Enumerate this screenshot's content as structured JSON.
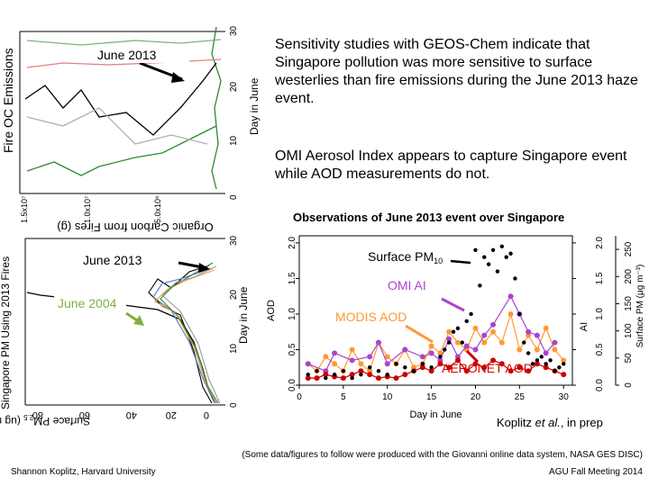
{
  "slide": {
    "paragraph1": "Sensitivity studies with GEOS-Chem indicate that Singapore pollution was more sensitive to surface westerlies than fire emissions during the June 2013 haze event.",
    "paragraph2": "OMI Aerosol Index appears to capture Singapore event while AOD measurements do not.",
    "obs_title": "Observations of June 2013 event over Singapore",
    "citation_author": "Koplitz ",
    "citation_etal": "et al.",
    "citation_tail": ", in prep",
    "footer_left": "Shannon Koplitz, Harvard University",
    "footer_credit": "(Some data/figures to follow were produced with the Giovanni online data system, NASA GES DISC)",
    "footer_meeting": "AGU Fall Meeting 2014"
  },
  "fig1": {
    "ylabel": "Fire OC Emissions",
    "xlabel": "Day in June",
    "annotation": "June 2013",
    "x_ticks": [
      "0",
      "10",
      "20",
      "30"
    ],
    "y_ticks": [
      "1.5x10⁷",
      "1.0x10⁷",
      "5.0x10⁶"
    ],
    "colors": [
      "#000000",
      "#2e8b2e",
      "#e08080",
      "#c0c0c0",
      "#80b080",
      "#d09090"
    ]
  },
  "fig2": {
    "ylabel": "Singapore PM Using 2013 Fires",
    "xlabel": "Day in June",
    "flipped_title": "Organic Carbon from Fires (g)",
    "annotation_2013": "June 2013",
    "annotation_2004": "June 2004",
    "x_ticks": [
      "0",
      "10",
      "20",
      "30"
    ],
    "y_ticks": [
      "80",
      "60",
      "40",
      "20",
      "0"
    ],
    "y_unit": "Surface PM",
    "y_unit_sub": "2.5",
    "y_unit_tail": " (ug m⁻³)"
  },
  "chart_data": {
    "type": "line",
    "title": "Observations of June 2013 event over Singapore",
    "xlabel": "Day in June",
    "ylabel": "AOD",
    "ylabel_right_ai": "AI",
    "ylabel_right_pm": "Surface PM (μg m⁻³)",
    "xlim": [
      0,
      31
    ],
    "ylim": [
      0,
      2.1
    ],
    "x_ticks": [
      0,
      5,
      10,
      15,
      20,
      25,
      30
    ],
    "y_ticks": [
      0.0,
      0.5,
      1.0,
      1.5,
      2.0
    ],
    "ai_ticks": [
      0.0,
      0.5,
      1.0,
      1.5,
      2.0
    ],
    "pm_ticks": [
      0,
      50,
      100,
      150,
      200,
      250
    ],
    "labels": {
      "pm": "Surface PM",
      "pm_sub": "10",
      "ai": "OMI AI",
      "modis": "MODIS AOD",
      "aeronet": "AERONET AOD"
    },
    "series": [
      {
        "name": "MODIS AOD",
        "color": "#ff9933",
        "x": [
          1,
          2,
          3,
          4,
          5,
          6,
          7,
          8,
          9,
          10,
          11,
          12,
          13,
          14,
          15,
          16,
          17,
          18,
          19,
          20,
          21,
          22,
          23,
          24,
          25,
          26,
          27,
          28,
          29,
          30
        ],
        "y": [
          0.3,
          0.2,
          0.4,
          0.3,
          0.2,
          0.5,
          0.3,
          0.2,
          0.6,
          0.4,
          0.3,
          0.5,
          0.25,
          0.3,
          0.55,
          0.45,
          0.75,
          0.6,
          0.5,
          0.8,
          0.6,
          0.75,
          0.6,
          1.0,
          0.5,
          0.7,
          0.5,
          0.8,
          0.5,
          0.35
        ]
      },
      {
        "name": "OMI AI",
        "color": "#aa44cc",
        "x": [
          1,
          3,
          4,
          6,
          8,
          9,
          10,
          12,
          14,
          15,
          16,
          17,
          18,
          19,
          20,
          21,
          22,
          24,
          25,
          26,
          27,
          28,
          29
        ],
        "y": [
          0.3,
          0.2,
          0.45,
          0.35,
          0.4,
          0.6,
          0.3,
          0.5,
          0.4,
          0.45,
          0.35,
          0.65,
          0.4,
          0.55,
          0.5,
          0.7,
          0.85,
          1.25,
          1.0,
          0.75,
          0.7,
          0.45,
          0.6
        ]
      },
      {
        "name": "AERONET AOD",
        "color": "#cc0000",
        "x": [
          1,
          2,
          3,
          4,
          5,
          6,
          7,
          8,
          9,
          10,
          11,
          12,
          13,
          14,
          15,
          16,
          17,
          18,
          19,
          20,
          21,
          22,
          23,
          24,
          25,
          26,
          27,
          28,
          29,
          30
        ],
        "y": [
          0.1,
          0.1,
          0.15,
          0.12,
          0.1,
          0.15,
          0.2,
          0.15,
          0.1,
          0.12,
          0.1,
          0.15,
          0.2,
          0.25,
          0.2,
          0.3,
          0.25,
          0.35,
          0.2,
          0.3,
          0.25,
          0.35,
          0.3,
          0.2,
          0.25,
          0.2,
          0.3,
          0.25,
          0.2,
          0.15
        ]
      },
      {
        "name": "Surface PM10",
        "color": "#000000",
        "x": [
          1,
          2,
          3,
          4,
          5,
          6,
          7,
          8,
          9,
          10,
          11,
          12,
          13,
          14,
          15,
          16,
          16.5,
          17,
          17.5,
          18,
          18.5,
          19,
          19.5,
          20,
          20.5,
          21,
          21.5,
          22,
          22.5,
          23,
          23.5,
          24,
          24.5,
          25,
          25.5,
          26,
          26.5,
          27,
          27.5,
          28,
          28.5,
          29,
          29.5,
          30
        ],
        "y": [
          0.15,
          0.2,
          0.1,
          0.15,
          0.2,
          0.1,
          0.15,
          0.25,
          0.2,
          0.15,
          0.3,
          0.25,
          0.2,
          0.3,
          0.25,
          0.4,
          0.5,
          0.6,
          0.75,
          0.8,
          0.6,
          0.9,
          1.0,
          1.9,
          1.4,
          1.8,
          1.7,
          1.9,
          1.6,
          1.95,
          1.8,
          1.85,
          1.5,
          1.0,
          0.6,
          0.45,
          0.3,
          0.35,
          0.4,
          0.3,
          0.35,
          0.2,
          0.25,
          0.3
        ]
      }
    ]
  }
}
